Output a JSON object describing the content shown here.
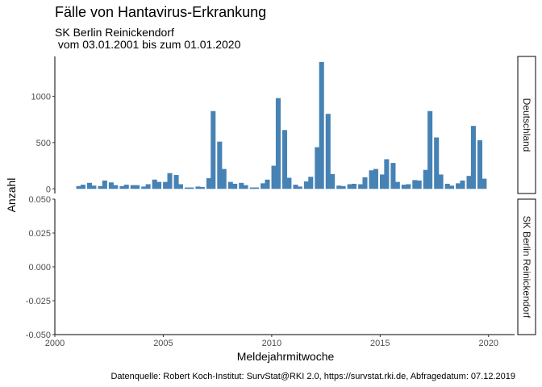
{
  "chart_data": {
    "type": "bar",
    "title": "Fälle von Hantavirus-Erkrankung",
    "subtitle_line1": "SK Berlin Reinickendorf",
    "subtitle_line2": " vom 03.01.2001 bis zum 01.01.2020",
    "xlabel": "Meldejahrmitwoche",
    "ylabel": "Anzahl",
    "caption": "Datenquelle: Robert Koch-Institut: SurvStat@RKI 2.0, https://survstat.rki.de, Abfragedatum: 07.12.2019",
    "xlim": [
      2000,
      2021.2
    ],
    "x_ticks": [
      2000,
      2005,
      2010,
      2015,
      2020
    ],
    "x_tick_labels": [
      "2000",
      "2005",
      "2010",
      "2015",
      "2020"
    ],
    "bar_color": "#4682B4",
    "grid": false,
    "facets": [
      {
        "strip_label": "Deutschland",
        "ylim": [
          -50,
          1430
        ],
        "y_ticks": [
          0,
          500,
          1000
        ],
        "y_tick_labels": [
          "0",
          "500",
          "1000"
        ],
        "x": [
          2001.1,
          2001.3,
          2001.6,
          2001.8,
          2002.1,
          2002.3,
          2002.6,
          2002.8,
          2003.1,
          2003.3,
          2003.6,
          2003.8,
          2004.1,
          2004.3,
          2004.6,
          2004.8,
          2005.1,
          2005.3,
          2005.6,
          2005.8,
          2006.1,
          2006.3,
          2006.6,
          2006.8,
          2007.1,
          2007.3,
          2007.6,
          2007.8,
          2008.1,
          2008.3,
          2008.6,
          2008.8,
          2009.1,
          2009.3,
          2009.6,
          2009.8,
          2010.1,
          2010.3,
          2010.6,
          2010.8,
          2011.1,
          2011.3,
          2011.6,
          2011.8,
          2012.1,
          2012.3,
          2012.6,
          2012.8,
          2013.1,
          2013.3,
          2013.6,
          2013.8,
          2014.1,
          2014.3,
          2014.6,
          2014.8,
          2015.1,
          2015.3,
          2015.6,
          2015.8,
          2016.1,
          2016.3,
          2016.6,
          2016.8,
          2017.1,
          2017.3,
          2017.6,
          2017.8,
          2018.1,
          2018.3,
          2018.6,
          2018.8,
          2019.1,
          2019.3,
          2019.6,
          2019.8
        ],
        "values": [
          30,
          45,
          65,
          35,
          30,
          90,
          70,
          40,
          30,
          45,
          40,
          40,
          25,
          50,
          100,
          75,
          75,
          170,
          150,
          50,
          15,
          15,
          25,
          20,
          115,
          840,
          510,
          215,
          75,
          55,
          65,
          40,
          15,
          15,
          60,
          100,
          250,
          980,
          635,
          120,
          45,
          25,
          80,
          130,
          450,
          1370,
          810,
          160,
          35,
          30,
          50,
          55,
          50,
          125,
          200,
          215,
          155,
          320,
          280,
          75,
          45,
          50,
          95,
          90,
          205,
          840,
          555,
          155,
          55,
          35,
          60,
          90,
          140,
          680,
          525,
          110
        ]
      },
      {
        "strip_label": "SK Berlin Reinickendorf",
        "ylim": [
          -0.05,
          0.05
        ],
        "y_ticks": [
          -0.05,
          -0.025,
          0,
          0.025,
          0.05
        ],
        "y_tick_labels": [
          "-0.050",
          "-0.025",
          "0.000",
          "0.025",
          "0.050"
        ],
        "x": [],
        "values": []
      }
    ]
  }
}
